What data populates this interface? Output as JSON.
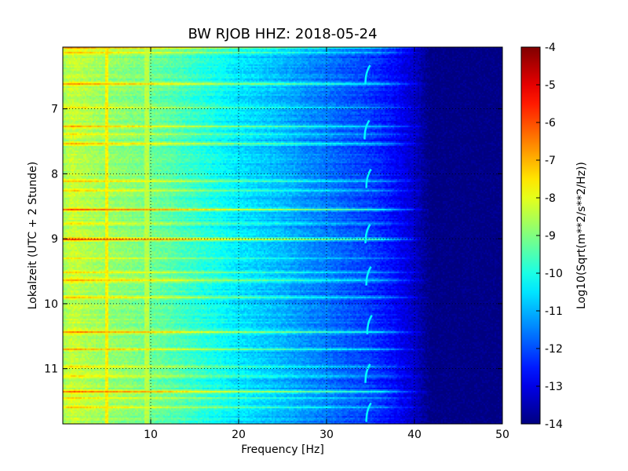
{
  "chart_data": {
    "type": "heatmap",
    "title": "BW RJOB HHZ: 2018-05-24",
    "xlabel": "Frequency [Hz]",
    "ylabel": "Lokalzeit (UTC + 2 Stunde)",
    "xlim": [
      0,
      50
    ],
    "ylim": [
      11.85,
      6.05
    ],
    "x_ticks": [
      "10",
      "20",
      "30",
      "40",
      "50"
    ],
    "y_ticks": [
      "7",
      "8",
      "9",
      "10",
      "11"
    ],
    "grid": true,
    "colormap": "jet",
    "colorbar": {
      "label": "Log10(Sqrt(m**2/s**2/Hz))",
      "range": [
        -14,
        -4
      ],
      "ticks": [
        "-4",
        "-5",
        "-6",
        "-7",
        "-8",
        "-9",
        "-10",
        "-11",
        "-12",
        "-13",
        "-14"
      ]
    },
    "spectral_profile": {
      "frequency": [
        0,
        1,
        3,
        5,
        8,
        10,
        12,
        15,
        18,
        20,
        22,
        25,
        28,
        30,
        32,
        34,
        36,
        38,
        40,
        41,
        42,
        43,
        50
      ],
      "level": [
        -8.7,
        -8.3,
        -8.6,
        -8.8,
        -9.0,
        -9.2,
        -9.4,
        -9.8,
        -10.2,
        -10.5,
        -10.7,
        -11.0,
        -11.4,
        -11.6,
        -11.9,
        -12.1,
        -12.4,
        -12.8,
        -13.3,
        -13.7,
        -14.0,
        -14.0,
        -14.0
      ]
    },
    "line_features": [
      {
        "frequency": 5.0,
        "level": -7.6
      },
      {
        "frequency": 9.5,
        "level": -8.4
      }
    ],
    "noise_bursts": [
      {
        "time": 6.05,
        "level_boost": 1.6
      },
      {
        "time": 6.12,
        "level_boost": 1.0
      },
      {
        "time": 6.6,
        "level_boost": 1.8
      },
      {
        "time": 6.98,
        "level_boost": 0.8
      },
      {
        "time": 7.25,
        "level_boost": 1.4
      },
      {
        "time": 7.38,
        "level_boost": 0.9
      },
      {
        "time": 7.52,
        "level_boost": 1.6
      },
      {
        "time": 8.1,
        "level_boost": 1.2
      },
      {
        "time": 8.25,
        "level_boost": 1.0
      },
      {
        "time": 8.55,
        "level_boost": 2.2
      },
      {
        "time": 8.75,
        "level_boost": 0.9
      },
      {
        "time": 9.0,
        "level_boost": 2.6
      },
      {
        "time": 9.28,
        "level_boost": 0.8
      },
      {
        "time": 9.5,
        "level_boost": 1.2
      },
      {
        "time": 9.62,
        "level_boost": 1.5
      },
      {
        "time": 9.9,
        "level_boost": 1.3
      },
      {
        "time": 10.42,
        "level_boost": 1.8
      },
      {
        "time": 10.68,
        "level_boost": 1.4
      },
      {
        "time": 10.95,
        "level_boost": 1.0
      },
      {
        "time": 11.1,
        "level_boost": 0.9
      },
      {
        "time": 11.35,
        "level_boost": 2.2
      },
      {
        "time": 11.45,
        "level_boost": 0.8
      },
      {
        "time": 11.58,
        "level_boost": 1.0
      }
    ],
    "tonal_hooks": [
      {
        "time": 6.45,
        "frequency": 34.6
      },
      {
        "time": 7.3,
        "frequency": 34.5
      },
      {
        "time": 8.05,
        "frequency": 34.7
      },
      {
        "time": 8.9,
        "frequency": 34.6
      },
      {
        "time": 9.55,
        "frequency": 34.7
      },
      {
        "time": 10.3,
        "frequency": 34.8
      },
      {
        "time": 11.05,
        "frequency": 34.6
      },
      {
        "time": 11.65,
        "frequency": 34.7
      }
    ]
  }
}
